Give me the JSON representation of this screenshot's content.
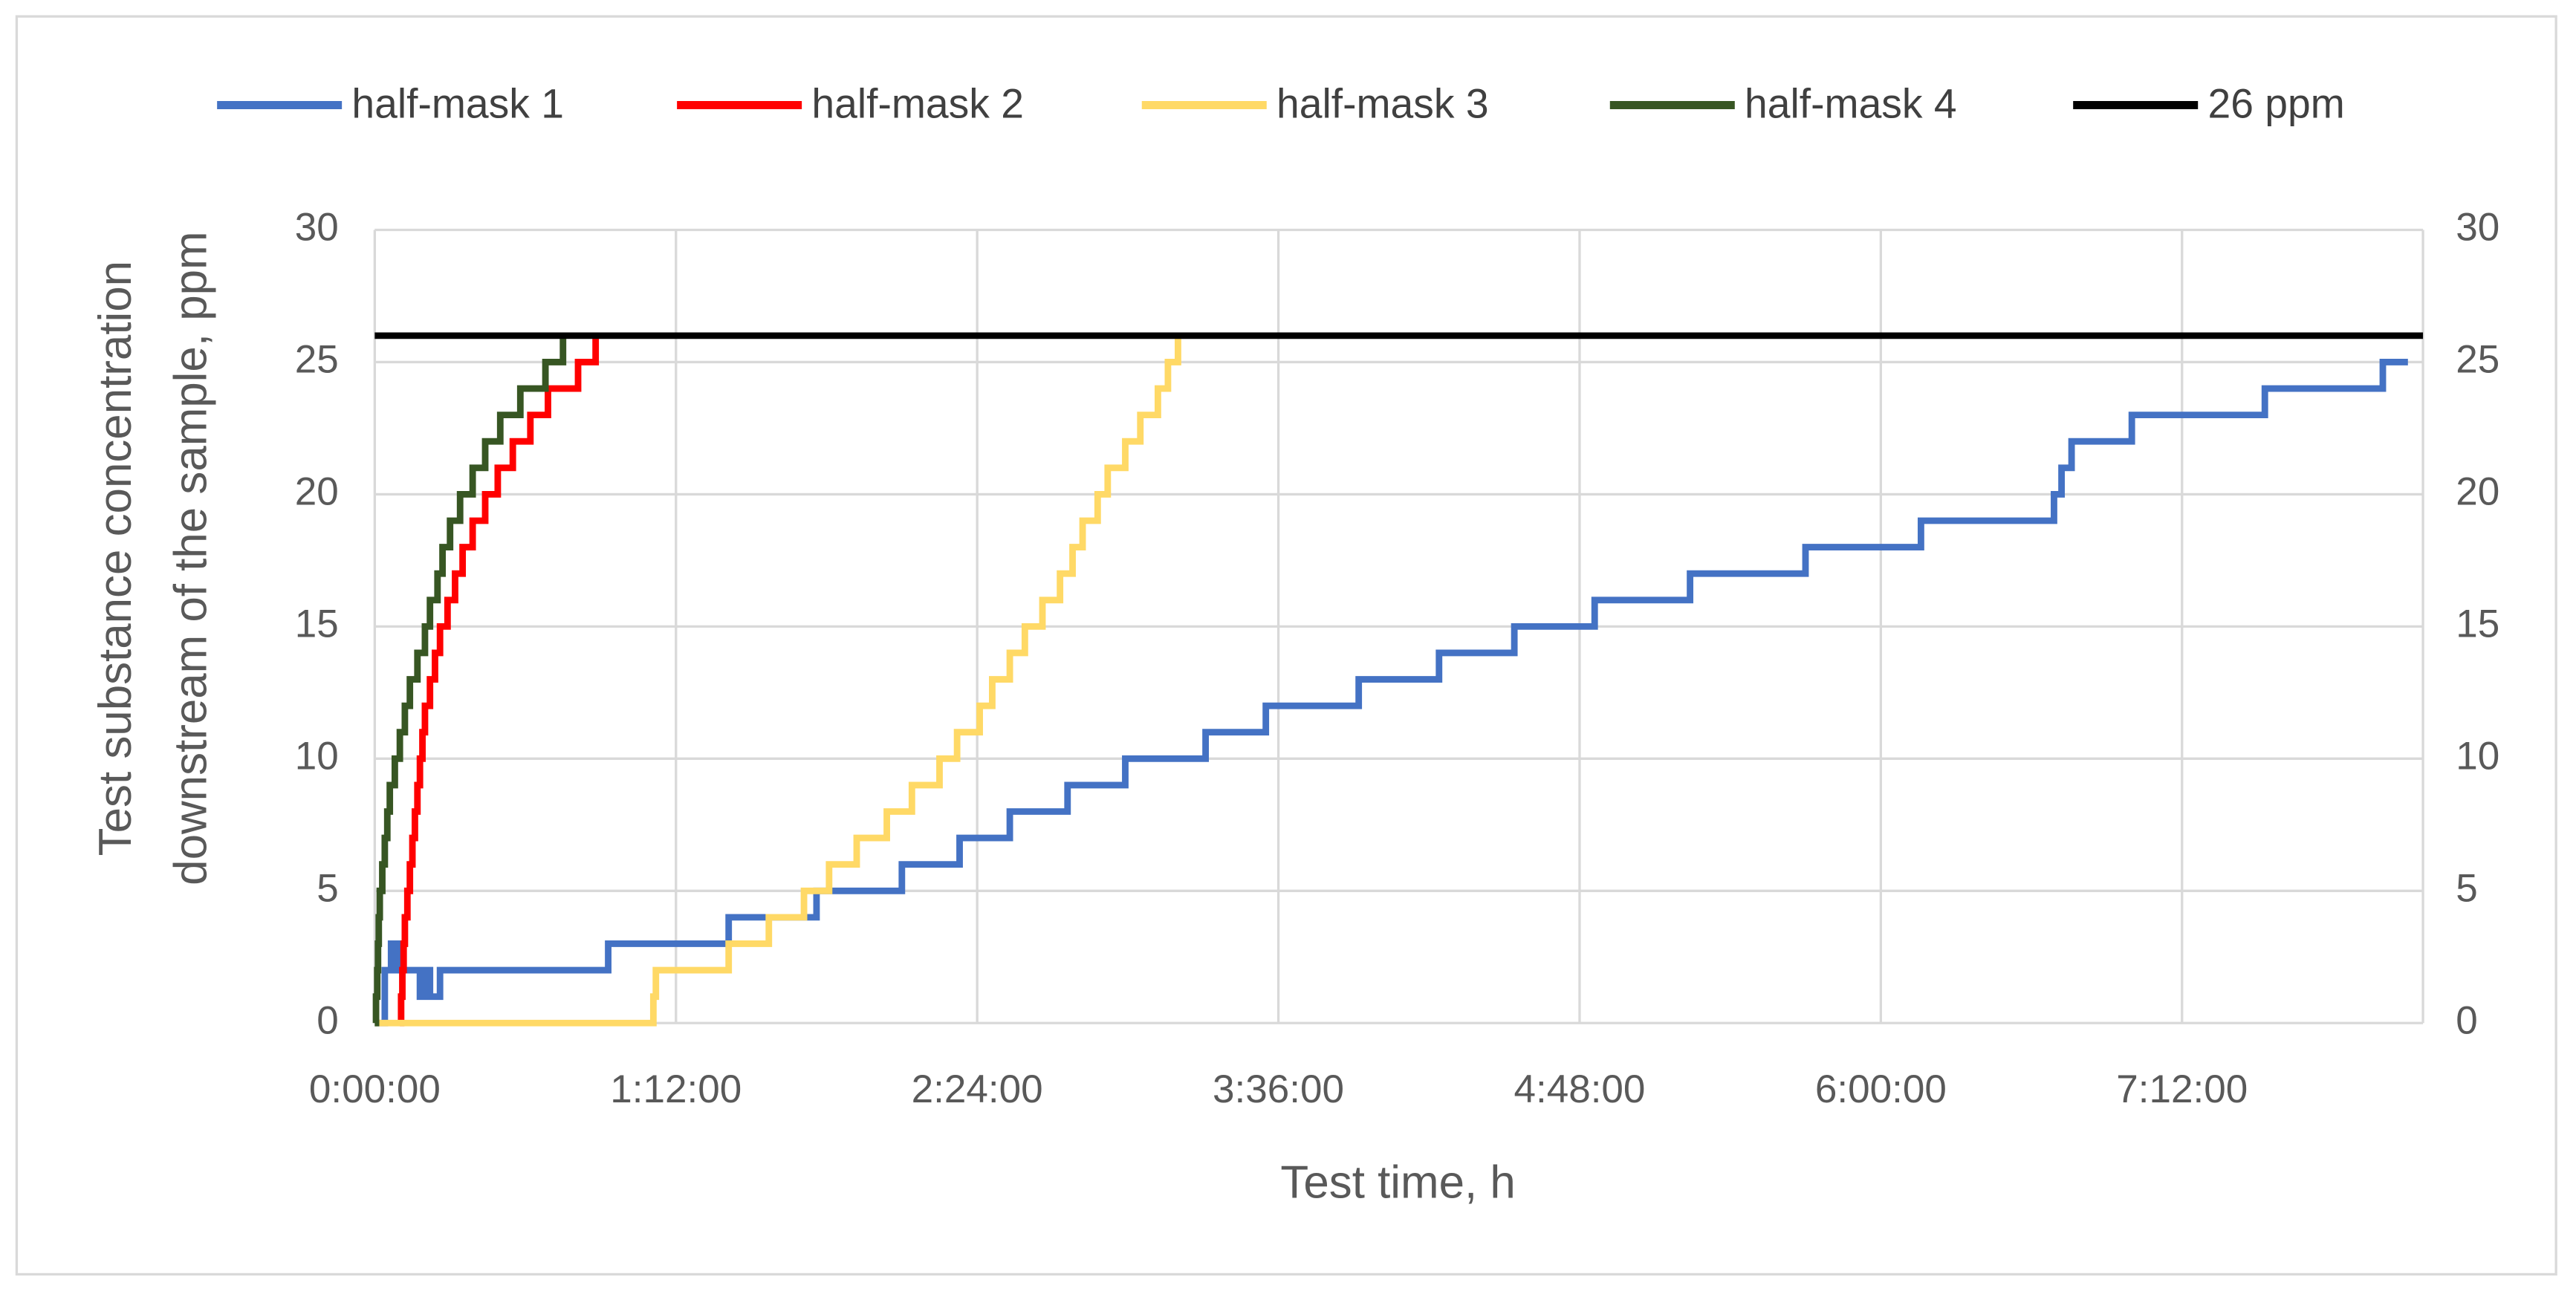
{
  "chart_data": {
    "type": "line",
    "step": "post",
    "x_label": "Test time, h",
    "y_label": [
      "Test substance concentration",
      "downstream of the sample, ppm"
    ],
    "xlim": [
      0,
      8.16
    ],
    "xticks": [
      {
        "value": 0,
        "label": "0:00:00"
      },
      {
        "value": 1.2,
        "label": "1:12:00"
      },
      {
        "value": 2.4,
        "label": "2:24:00"
      },
      {
        "value": 3.6,
        "label": "3:36:00"
      },
      {
        "value": 4.8,
        "label": "4:48:00"
      },
      {
        "value": 6,
        "label": "6:00:00"
      },
      {
        "value": 7.2,
        "label": "7:12:00"
      }
    ],
    "ylim": [
      0,
      30
    ],
    "yticks": [
      0,
      5,
      10,
      15,
      20,
      25,
      30
    ],
    "y2lim": [
      0,
      30
    ],
    "y2ticks": [
      0,
      5,
      10,
      15,
      20,
      25,
      30
    ],
    "grid": true,
    "legend": "top",
    "series": [
      {
        "name": "half-mask 1",
        "color": "#4472c4",
        "x": [
          0,
          0.04,
          0.065,
          0.09,
          0.18,
          0.2,
          0.22,
          0.26,
          0.93,
          1.41,
          1.76,
          2.1,
          2.33,
          2.53,
          2.76,
          2.99,
          3.31,
          3.55,
          3.92,
          4.24,
          4.54,
          4.86,
          5.24,
          5.7,
          6.16,
          6.69,
          6.72,
          6.76,
          7.0,
          7.53,
          8.0,
          8.1
        ],
        "values": [
          0,
          2,
          3,
          2,
          1,
          2,
          1,
          2,
          3,
          4,
          5,
          6,
          7,
          8,
          9,
          10,
          11,
          12,
          13,
          14,
          15,
          16,
          17,
          18,
          19,
          20,
          21,
          22,
          23,
          24,
          25,
          25
        ]
      },
      {
        "name": "half-mask 2",
        "color": "#ff0000",
        "x": [
          0.1,
          0.105,
          0.11,
          0.115,
          0.12,
          0.13,
          0.14,
          0.15,
          0.16,
          0.17,
          0.18,
          0.19,
          0.2,
          0.22,
          0.24,
          0.26,
          0.29,
          0.32,
          0.35,
          0.39,
          0.44,
          0.49,
          0.55,
          0.62,
          0.69,
          0.81,
          0.88
        ],
        "values": [
          0,
          1,
          2,
          3,
          4,
          5,
          6,
          7,
          8,
          9,
          10,
          11,
          12,
          13,
          14,
          15,
          16,
          17,
          18,
          19,
          20,
          21,
          22,
          23,
          24,
          25,
          26
        ]
      },
      {
        "name": "half-mask 3",
        "color": "#ffd966",
        "x": [
          0,
          1.11,
          1.12,
          1.41,
          1.57,
          1.71,
          1.81,
          1.92,
          2.04,
          2.14,
          2.25,
          2.32,
          2.41,
          2.46,
          2.53,
          2.59,
          2.66,
          2.73,
          2.78,
          2.82,
          2.88,
          2.92,
          2.99,
          3.05,
          3.12,
          3.16,
          3.2
        ],
        "values": [
          0,
          1,
          2,
          3,
          4,
          5,
          6,
          7,
          8,
          9,
          10,
          11,
          12,
          13,
          14,
          15,
          16,
          17,
          18,
          19,
          20,
          21,
          22,
          23,
          24,
          25,
          26
        ]
      },
      {
        "name": "half-mask 4",
        "color": "#375623",
        "x": [
          0,
          0.005,
          0.01,
          0.013,
          0.016,
          0.02,
          0.03,
          0.04,
          0.05,
          0.06,
          0.08,
          0.1,
          0.12,
          0.14,
          0.17,
          0.2,
          0.22,
          0.25,
          0.27,
          0.3,
          0.34,
          0.39,
          0.44,
          0.5,
          0.58,
          0.68,
          0.75
        ],
        "values": [
          0,
          1,
          2,
          3,
          4,
          5,
          6,
          7,
          8,
          9,
          10,
          11,
          12,
          13,
          14,
          15,
          16,
          17,
          18,
          19,
          20,
          21,
          22,
          23,
          24,
          25,
          26
        ]
      },
      {
        "name": "26 ppm",
        "color": "#000000",
        "x": [
          0,
          8.16
        ],
        "values": [
          26,
          26
        ]
      }
    ]
  }
}
